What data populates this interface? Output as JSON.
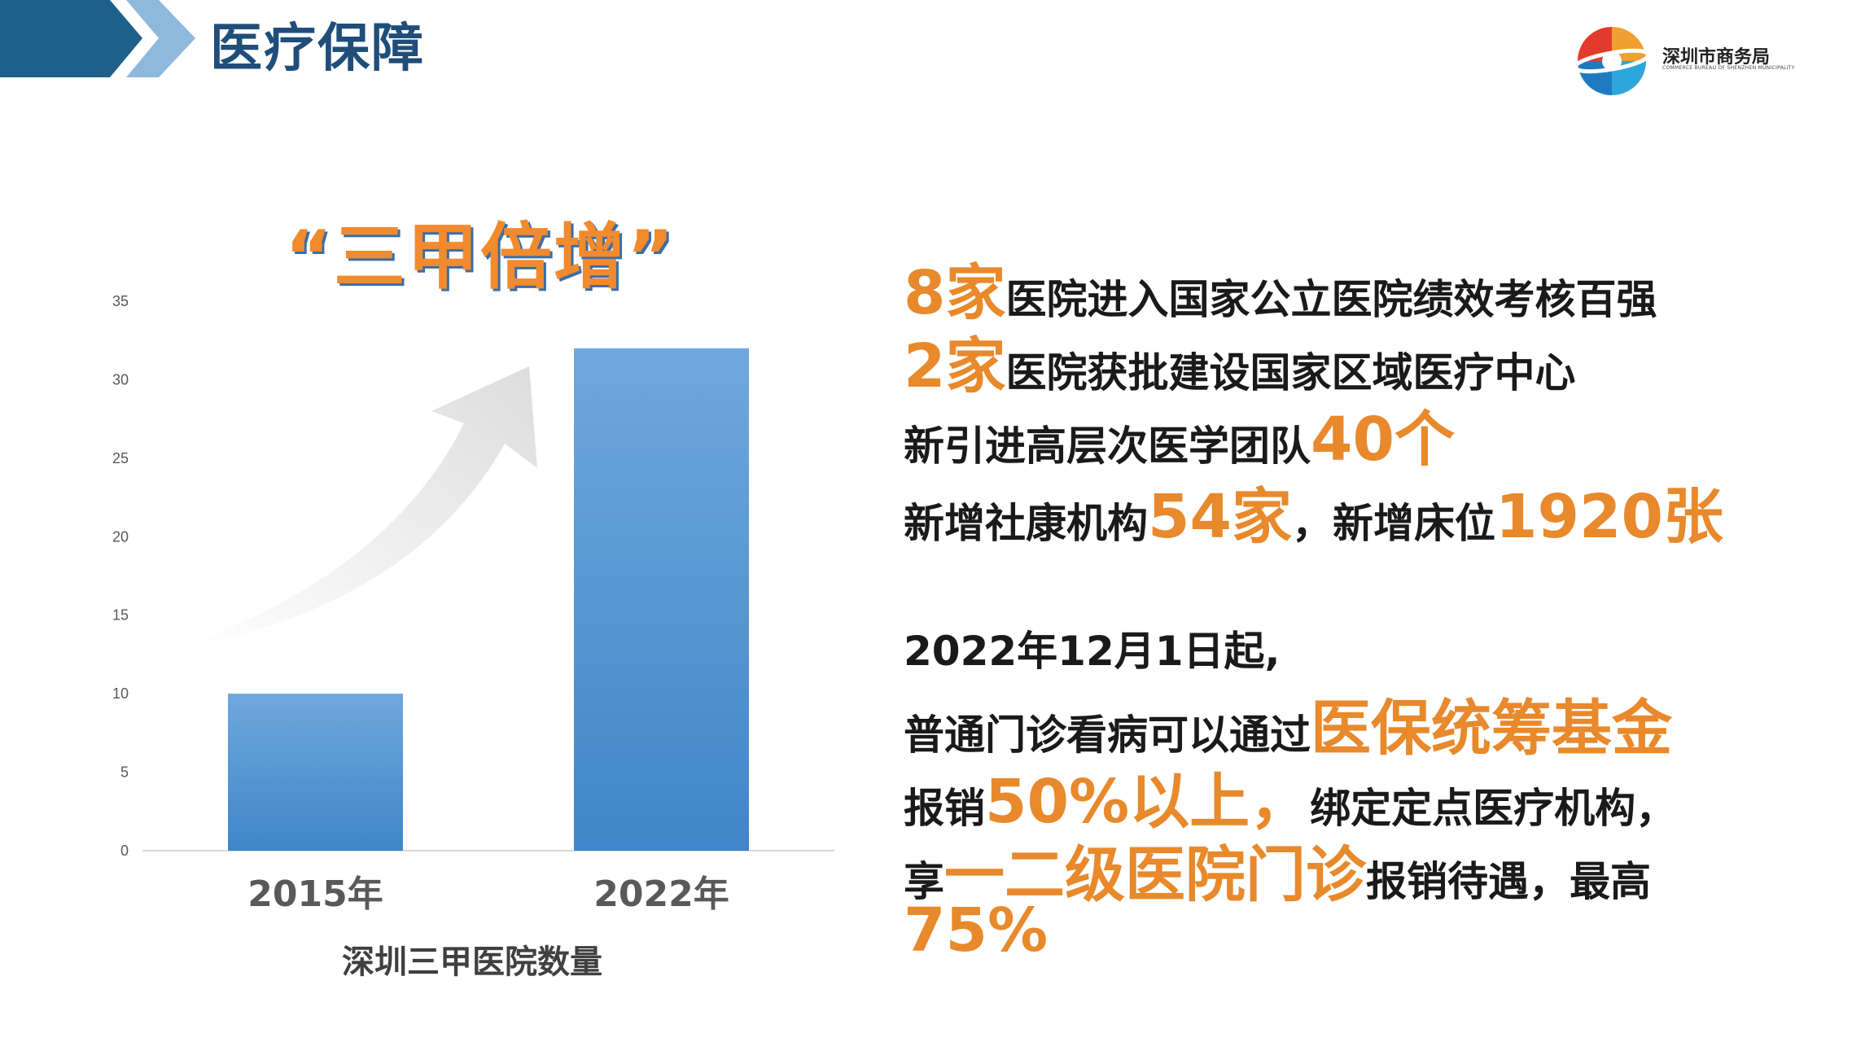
{
  "header": {
    "title": "医疗保障",
    "logo_name": "深圳市商务局",
    "logo_subtitle": "COMMERCE BUREAU OF SHENZHEN MUNICIPALITY"
  },
  "headline": "“三甲倍增”",
  "chart_data": {
    "type": "bar",
    "title": "深圳三甲医院数量",
    "categories": [
      "2015年",
      "2022年"
    ],
    "values": [
      10,
      32
    ],
    "ylim": [
      0,
      35
    ],
    "yticks": [
      0,
      5,
      10,
      15,
      20,
      25,
      30,
      35
    ],
    "grid": false,
    "bar_color": "#5b9bd5"
  },
  "facts": {
    "line1": {
      "highlight": "8家",
      "text": "医院进入国家公立医院绩效考核百强"
    },
    "line2": {
      "highlight": "2家",
      "text": "医院获批建设国家区域医疗中心"
    },
    "line3": {
      "text": "新引进高层次医学团队",
      "highlight": "40个"
    },
    "line4": {
      "text1": "新增社康机构",
      "highlight1": "54家",
      "text2": "，新增床位",
      "highlight2": "1920张"
    }
  },
  "policy": {
    "line1": "2022年12月1日起,",
    "line2": {
      "text": "普通门诊看病可以通过",
      "highlight": "医保统筹基金"
    },
    "line3": {
      "text1": "报销",
      "highlight": "50%以上，",
      "text2": "绑定定点医疗机构，"
    },
    "line4": {
      "text1": "享",
      "highlight": "一二级医院门诊",
      "text2": "报销待遇，最高"
    },
    "line5": {
      "highlight": "75%"
    }
  },
  "colors": {
    "accent": "#e8892c",
    "title": "#1f4e79",
    "header_dark": "#1f5f8b",
    "header_light": "#8fb8dd"
  }
}
